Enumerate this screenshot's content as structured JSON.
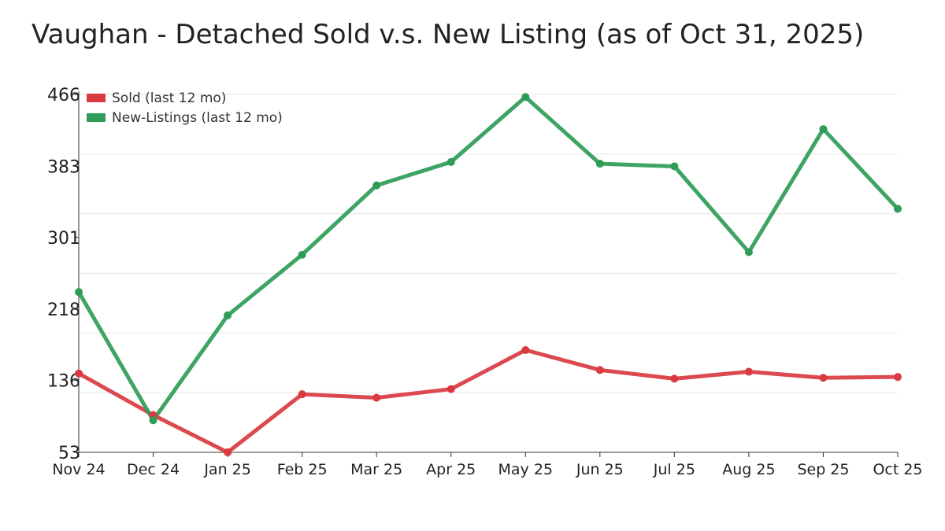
{
  "chart_data": {
    "type": "line",
    "title": "Vaughan - Detached Sold v.s. New Listing (as of Oct 31, 2025)",
    "categories": [
      "Nov 24",
      "Dec 24",
      "Jan 25",
      "Feb 25",
      "Mar 25",
      "Apr 25",
      "May 25",
      "Jun 25",
      "Jul 25",
      "Aug 25",
      "Sep 25",
      "Oct 25"
    ],
    "yticks": [
      53,
      136,
      218,
      301,
      383,
      466
    ],
    "ylim": [
      53,
      466
    ],
    "xlabel": "",
    "ylabel": "",
    "legend_position": "top-left",
    "series": [
      {
        "name": "Sold (last 12 mo)",
        "color": "#d93a3f",
        "values": [
          144,
          96,
          53,
          120,
          116,
          126,
          171,
          148,
          138,
          146,
          139,
          140
        ]
      },
      {
        "name": "New-Listings (last 12 mo)",
        "color": "#2e9c57",
        "values": [
          238,
          90,
          211,
          281,
          361,
          388,
          463,
          386,
          383,
          284,
          426,
          334
        ]
      }
    ]
  }
}
